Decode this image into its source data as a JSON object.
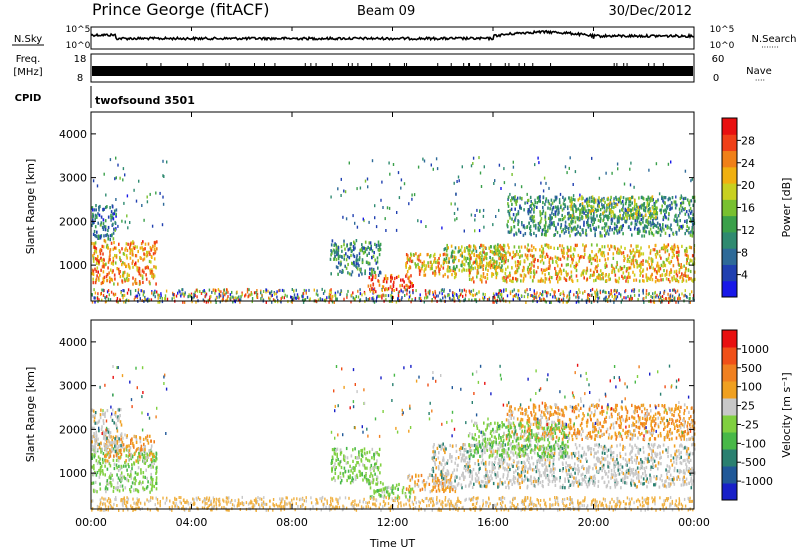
{
  "header": {
    "station": "Prince George (fitACF)",
    "beam": "Beam 09",
    "date": "30/Dec/2012"
  },
  "top_panels": {
    "nsky_label": "N.Sky",
    "nsky_ticks": [
      "10^5",
      "10^0"
    ],
    "nsearch_label": "N.Search",
    "nsearch_ticks": [
      "10^5",
      "10^0"
    ],
    "freq_label": "Freq.",
    "freq_unit": "[MHz]",
    "freq_ticks": [
      "18",
      "8"
    ],
    "nave_label": "Nave",
    "nave_ticks": [
      "60",
      "0"
    ],
    "cpid_label": "CPID",
    "cpid_value": "twofsound 3501"
  },
  "chart_data": [
    {
      "type": "heatmap",
      "name": "power",
      "ylabel": "Slant Range [km]",
      "yticks": [
        "4000",
        "3000",
        "2000",
        "1000"
      ],
      "ylim": [
        180,
        4500
      ],
      "xlim_hours": [
        0,
        24
      ],
      "colorbar": {
        "label": "Power [dB]",
        "ticks": [
          "28",
          "24",
          "20",
          "16",
          "12",
          "8",
          "4"
        ],
        "range": [
          0,
          32
        ],
        "colors": [
          "#1818e8",
          "#2040b0",
          "#2e6a98",
          "#2f8a70",
          "#3aa04a",
          "#78c030",
          "#c8d020",
          "#f0b010",
          "#f08018",
          "#f04018",
          "#e81010"
        ]
      },
      "regions": [
        {
          "t0": 0.0,
          "t1": 2.6,
          "r0": 600,
          "r1": 1600,
          "level": 24
        },
        {
          "t0": 0.0,
          "t1": 1.0,
          "r0": 1600,
          "r1": 2400,
          "level": 8
        },
        {
          "t0": 9.5,
          "t1": 11.5,
          "r0": 800,
          "r1": 1600,
          "level": 10
        },
        {
          "t0": 11.0,
          "t1": 12.8,
          "r0": 450,
          "r1": 800,
          "level": 28
        },
        {
          "t0": 12.5,
          "t1": 14.5,
          "r0": 750,
          "r1": 1300,
          "level": 22
        },
        {
          "t0": 14.0,
          "t1": 16.5,
          "r0": 900,
          "r1": 1500,
          "level": 16
        },
        {
          "t0": 15.0,
          "t1": 24.0,
          "r0": 650,
          "r1": 1500,
          "level": 22
        },
        {
          "t0": 16.5,
          "t1": 24.0,
          "r0": 1700,
          "r1": 2600,
          "level": 10
        },
        {
          "t0": 19.0,
          "t1": 22.5,
          "r0": 2100,
          "r1": 2600,
          "level": 16
        }
      ]
    },
    {
      "type": "heatmap",
      "name": "velocity",
      "ylabel": "Slant Range [km]",
      "yticks": [
        "4000",
        "3000",
        "2000",
        "1000"
      ],
      "ylim": [
        180,
        4500
      ],
      "xlim_hours": [
        0,
        24
      ],
      "xlabel": "Time UT",
      "xticks": [
        "00:00",
        "04:00",
        "08:00",
        "12:00",
        "16:00",
        "20:00",
        "00:00"
      ],
      "colorbar": {
        "label": "Velocity [m s^-1]",
        "ticks": [
          "1000",
          "500",
          "100",
          "25",
          "-25",
          "-100",
          "-500",
          "-1000"
        ],
        "colors": [
          "#1820c8",
          "#205898",
          "#2a8070",
          "#48b848",
          "#80d040",
          "#c8c8c8",
          "#f0a020",
          "#f08020",
          "#f05018",
          "#e81010"
        ]
      },
      "regions": [
        {
          "t0": 0.0,
          "t1": 2.6,
          "r0": 600,
          "r1": 1600,
          "cls": "green"
        },
        {
          "t0": 0.5,
          "t1": 2.5,
          "r0": 1300,
          "r1": 1900,
          "cls": "orange"
        },
        {
          "t0": 0.0,
          "t1": 1.2,
          "r0": 1500,
          "r1": 2500,
          "cls": "gray"
        },
        {
          "t0": 9.5,
          "t1": 11.5,
          "r0": 800,
          "r1": 1600,
          "cls": "green"
        },
        {
          "t0": 11.0,
          "t1": 12.8,
          "r0": 450,
          "r1": 800,
          "cls": "green"
        },
        {
          "t0": 12.5,
          "t1": 14.5,
          "r0": 600,
          "r1": 1000,
          "cls": "orange"
        },
        {
          "t0": 13.5,
          "t1": 24.0,
          "r0": 700,
          "r1": 1700,
          "cls": "gray"
        },
        {
          "t0": 16.5,
          "t1": 24.0,
          "r0": 1800,
          "r1": 2600,
          "cls": "orange"
        },
        {
          "t0": 15.0,
          "t1": 19.0,
          "r0": 1400,
          "r1": 2200,
          "cls": "green"
        }
      ]
    }
  ]
}
